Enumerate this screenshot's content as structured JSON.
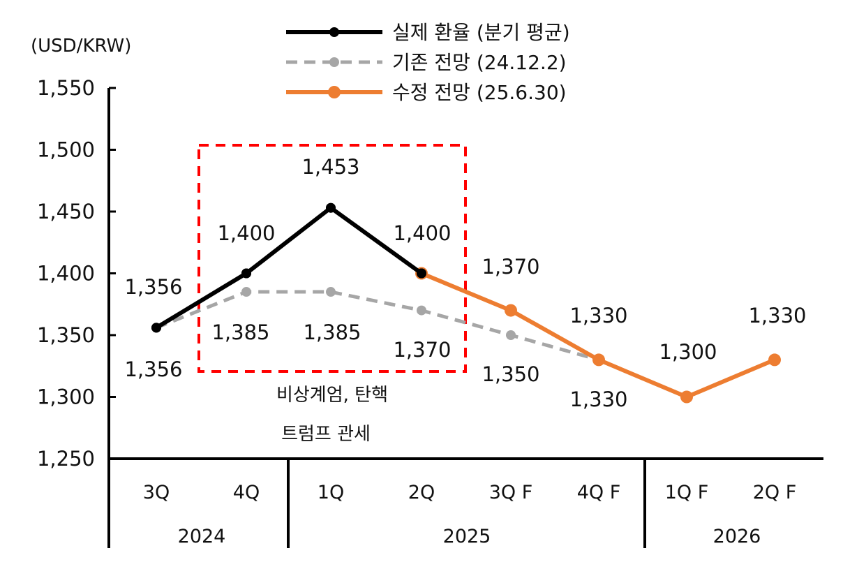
{
  "chart_data": {
    "type": "line",
    "unit_label": "(USD/KRW)",
    "y_axis": {
      "min": 1250,
      "max": 1550,
      "ticks": [
        1250,
        1300,
        1350,
        1400,
        1450,
        1500,
        1550
      ],
      "tick_labels": [
        "1,250",
        "1,300",
        "1,350",
        "1,400",
        "1,450",
        "1,500",
        "1,550"
      ]
    },
    "categories": [
      "3Q",
      "4Q",
      "1Q",
      "2Q",
      "3Q F",
      "4Q F",
      "1Q F",
      "2Q F"
    ],
    "year_groups": [
      {
        "label": "2024",
        "span": 2
      },
      {
        "label": "2025",
        "span": 4
      },
      {
        "label": "2026",
        "span": 2
      }
    ],
    "series": [
      {
        "name": "실제 환율 (분기 평균)",
        "color": "#000000",
        "style": "solid",
        "values": [
          1356,
          1400,
          1453,
          1400,
          null,
          null,
          null,
          null
        ],
        "labels": [
          "1,356",
          "1,400",
          "1,453",
          "1,400",
          null,
          null,
          null,
          null
        ]
      },
      {
        "name": "기존 전망 (24.12.2)",
        "color": "#a6a6a6",
        "style": "dashed",
        "values": [
          1356,
          1385,
          1385,
          1370,
          1350,
          1330,
          null,
          null
        ],
        "labels": [
          "1,356",
          "1,385",
          "1,385",
          "1,370",
          "1,350",
          "1,330",
          null,
          null
        ]
      },
      {
        "name": "수정 전망 (25.6.30)",
        "color": "#ed7d31",
        "style": "solid",
        "values": [
          null,
          null,
          null,
          1400,
          1370,
          1330,
          1300,
          1330
        ],
        "labels": [
          null,
          null,
          null,
          null,
          "1,370",
          "1,330",
          "1,300",
          "1,330"
        ]
      }
    ],
    "highlight_box": {
      "color": "#ff0000",
      "from_category": "4Q",
      "to_category": "2Q",
      "notes": [
        "비상계엄, 탄핵",
        "트럼프 관세"
      ]
    }
  }
}
